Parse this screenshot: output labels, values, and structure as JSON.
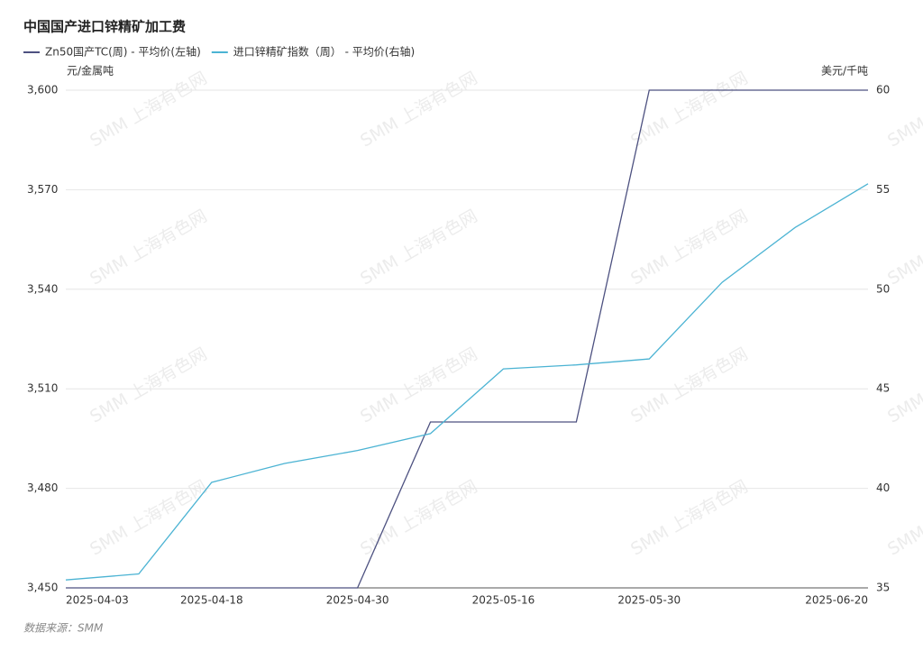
{
  "chart_data": {
    "type": "line",
    "title": "中国国产进口锌精矿加工费",
    "watermark": "SMM 上海有色网",
    "source": "数据来源：SMM",
    "y_label": "元/金属吨",
    "y2_label": "美元/千吨",
    "categories": [
      "2025-04-03",
      null,
      "2025-04-18",
      null,
      "2025-04-30",
      null,
      "2025-05-16",
      null,
      "2025-05-30",
      null,
      null,
      "2025-06-20"
    ],
    "series": [
      {
        "name": "Zn50国产TC(周) - 平均价(左轴)",
        "color": "#4d5180",
        "values": [
          3450,
          3450,
          3450,
          3450,
          3450,
          3500,
          3500,
          3500,
          3600,
          3600,
          3600,
          3600
        ]
      },
      {
        "name": "进口锌精矿指数（周） - 平均价(右轴)",
        "color": "#4bb3d3",
        "axis": "y2",
        "values": [
          35.4,
          35.7,
          40.3,
          41.25,
          41.9,
          42.75,
          46.0,
          46.2,
          46.5,
          50.35,
          53.1,
          55.3
        ]
      }
    ],
    "ylim": [
      3450,
      3600
    ],
    "yticks": [
      {
        "value": 3450,
        "label": "3,450"
      },
      {
        "value": 3480,
        "label": "3,480"
      },
      {
        "value": 3510,
        "label": "3,510"
      },
      {
        "value": 3540,
        "label": "3,540"
      },
      {
        "value": 3570,
        "label": "3,570"
      },
      {
        "value": 3600,
        "label": "3,600"
      }
    ],
    "y2lim": [
      35,
      60
    ],
    "y2ticks": [
      35,
      40,
      45,
      50,
      55,
      60
    ],
    "grid": true
  }
}
